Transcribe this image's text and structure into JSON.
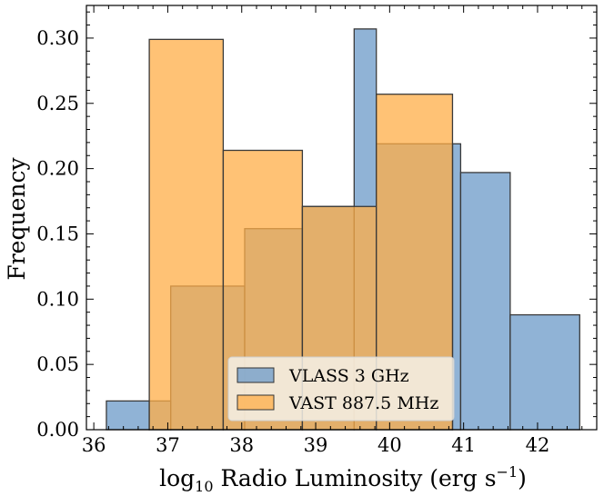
{
  "chart_data": {
    "type": "bar",
    "xlabel_main": "log",
    "xlabel_sub": "10",
    "xlabel_rest": " Radio Luminosity (erg s",
    "xlabel_sup": "−1",
    "xlabel_close": ")",
    "ylabel": "Frequency",
    "xlim": [
      35.9,
      42.8
    ],
    "ylim": [
      0,
      0.325
    ],
    "xticks": [
      "36",
      "37",
      "38",
      "39",
      "40",
      "41",
      "42"
    ],
    "yticks": [
      "0.00",
      "0.05",
      "0.10",
      "0.15",
      "0.20",
      "0.25",
      "0.30"
    ],
    "legend_position": "lower center",
    "series": [
      {
        "name": "VLASS 3 GHz",
        "color": "#6b9ac8",
        "edges": [
          36.17,
          36.75,
          37.04,
          37.75,
          38.04,
          38.82,
          39.52,
          39.82,
          40.85,
          40.96,
          41.63,
          42.57
        ],
        "values": [
          0.022,
          0.022,
          0.11,
          0.11,
          0.154,
          0.171,
          0.307,
          0.219,
          0.219,
          0.197,
          0.088
        ]
      },
      {
        "name": "VAST 887.5 MHz",
        "color": "#ffad47",
        "edges": [
          36.75,
          37.75,
          38.82,
          39.82,
          40.85
        ],
        "values": [
          0.299,
          0.214,
          0.171,
          0.257
        ]
      }
    ]
  }
}
